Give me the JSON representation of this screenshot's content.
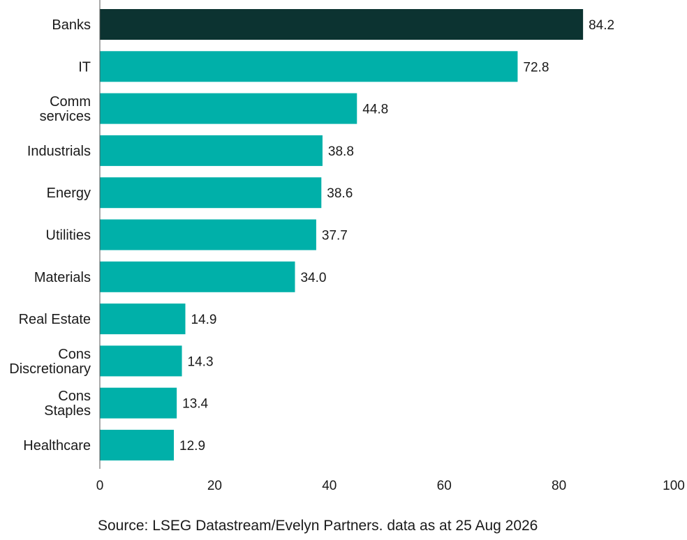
{
  "chart_data": {
    "type": "bar",
    "orientation": "horizontal",
    "categories": [
      [
        "Banks"
      ],
      [
        "IT"
      ],
      [
        "Comm",
        "services"
      ],
      [
        "Industrials"
      ],
      [
        "Energy"
      ],
      [
        "Utilities"
      ],
      [
        "Materials"
      ],
      [
        "Real Estate"
      ],
      [
        "Cons",
        "Discretionary"
      ],
      [
        "Cons",
        "Staples"
      ],
      [
        "Healthcare"
      ]
    ],
    "values": [
      84.2,
      72.8,
      44.8,
      38.8,
      38.6,
      37.7,
      34.0,
      14.9,
      14.3,
      13.4,
      12.9
    ],
    "value_labels": [
      "84.2",
      "72.8",
      "44.8",
      "38.8",
      "38.6",
      "37.7",
      "34.0",
      "14.9",
      "14.3",
      "13.4",
      "12.9"
    ],
    "xlim": [
      0,
      100
    ],
    "xticks": [
      0,
      20,
      40,
      60,
      80,
      100
    ],
    "grid": false,
    "colors": {
      "highlight": "#0c3331",
      "default": "#00b0a9"
    },
    "highlight_index": 0
  },
  "source": "Source: LSEG Datastream/Evelyn Partners. data as at 25 Aug 2026"
}
